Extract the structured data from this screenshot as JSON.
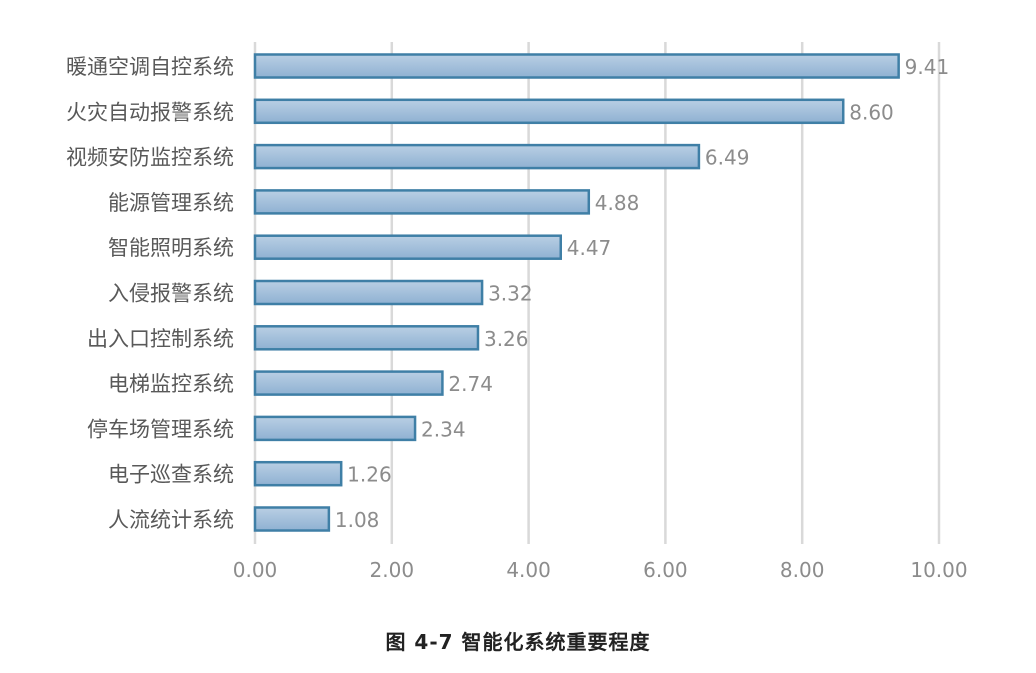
{
  "caption": "图 4-7 智能化系统重要程度",
  "chart_data": {
    "type": "bar",
    "orientation": "horizontal",
    "categories": [
      "暖通空调自控系统",
      "火灾自动报警系统",
      "视频安防监控系统",
      "能源管理系统",
      "智能照明系统",
      "入侵报警系统",
      "出入口控制系统",
      "电梯监控系统",
      "停车场管理系统",
      "电子巡查系统",
      "人流统计系统"
    ],
    "values": [
      9.41,
      8.6,
      6.49,
      4.88,
      4.47,
      3.32,
      3.26,
      2.74,
      2.34,
      1.26,
      1.08
    ],
    "value_labels": [
      "9.41",
      "8.60",
      "6.49",
      "4.88",
      "4.47",
      "3.32",
      "3.26",
      "2.74",
      "2.34",
      "1.26",
      "1.08"
    ],
    "xlim": [
      0,
      10
    ],
    "x_ticks": [
      "0.00",
      "2.00",
      "4.00",
      "6.00",
      "8.00",
      "10.00"
    ],
    "grid": true,
    "colors": {
      "bar_fill_top": "#b9cfe4",
      "bar_fill_bottom": "#8fb1d2",
      "bar_stroke": "#3f7fa6",
      "grid": "#d9d9d9",
      "text": "#595959",
      "tick_text": "#8c8c8c"
    }
  }
}
